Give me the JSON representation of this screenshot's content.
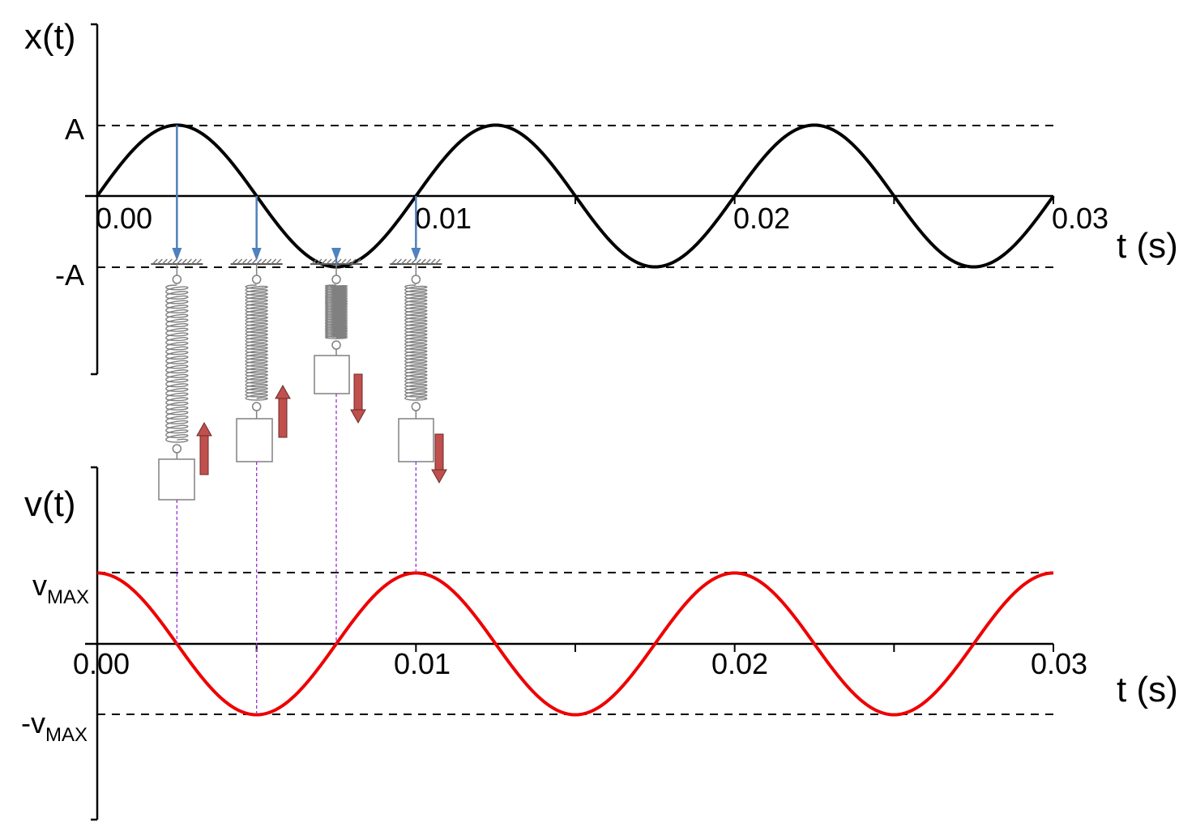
{
  "chart_data": [
    {
      "type": "line",
      "ylabel": "x(t)",
      "xlabel": "t (s)",
      "xlim": [
        0,
        0.03
      ],
      "x_ticks": [
        "0.00",
        "0.01",
        "0.02",
        "0.03"
      ],
      "y_ticks": [
        "A",
        "-A"
      ],
      "reference_lines": [
        "A",
        "-A"
      ],
      "series": [
        {
          "function": "A*sin(2*pi*t/0.01)",
          "amplitude": 1,
          "period": 0.01,
          "color": "#000000"
        }
      ]
    },
    {
      "type": "line",
      "ylabel": "v(t)",
      "xlabel": "t (s)",
      "xlim": [
        0,
        0.03
      ],
      "x_ticks": [
        "0.00",
        "0.01",
        "0.02",
        "0.03"
      ],
      "y_ticks": [
        {
          "main": "v",
          "sub": "MAX"
        },
        {
          "main": "-v",
          "sub": "MAX"
        }
      ],
      "reference_lines": [
        "vMAX",
        "-vMAX"
      ],
      "series": [
        {
          "function": "vMAX*cos(2*pi*t/0.01)",
          "amplitude": 1,
          "period": 0.01,
          "color": "#ee0000"
        }
      ]
    }
  ],
  "springs": [
    {
      "t": 0.0025,
      "arrow": "up"
    },
    {
      "t": 0.005,
      "arrow": "up"
    },
    {
      "t": 0.0075,
      "arrow": "down"
    },
    {
      "t": 0.01,
      "arrow": "down"
    }
  ],
  "colors": {
    "position_curve": "#000000",
    "velocity_curve": "#ee0000",
    "projection_arrow": "#4f81bd",
    "velocity_arrow": "#c0504d",
    "guide_line": "#9b30d9",
    "spring": "#808080"
  }
}
